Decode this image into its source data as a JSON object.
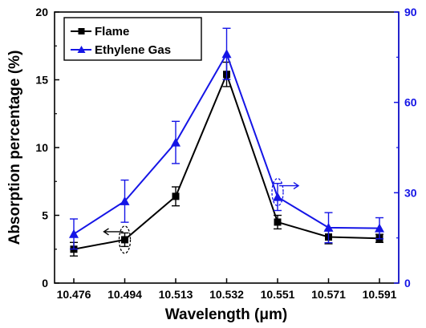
{
  "chart_data": {
    "type": "line",
    "categories": [
      "10.476",
      "10.494",
      "10.513",
      "10.532",
      "10.551",
      "10.571",
      "10.591"
    ],
    "xlabel_prefix": "Wavelength (",
    "xlabel_unit": "μm",
    "xlabel_suffix": ")",
    "ylabel": "Absorption percentage (%)",
    "ylim": [
      0,
      20
    ],
    "yticks": [
      "0",
      "5",
      "10",
      "15",
      "20"
    ],
    "y2lim": [
      0,
      90
    ],
    "y2ticks": [
      "0",
      "30",
      "60",
      "90"
    ],
    "grid": false,
    "legend_position": "top-left",
    "series": [
      {
        "name": "Flame",
        "axis": "left",
        "color": "#000000",
        "marker": "square",
        "values": [
          2.5,
          3.2,
          6.4,
          15.4,
          4.5,
          3.4,
          3.3
        ],
        "errors": [
          0.5,
          0.5,
          0.7,
          0.9,
          0.5,
          0.5,
          0.3
        ]
      },
      {
        "name": "Ethylene Gas",
        "axis": "right",
        "color": "#1515e6",
        "marker": "triangle",
        "values": [
          16.3,
          27.2,
          46.7,
          76.1,
          28.6,
          18.4,
          18.2
        ],
        "errors": [
          5.0,
          7.0,
          7.0,
          8.5,
          4.5,
          5.0,
          3.5
        ]
      }
    ]
  }
}
